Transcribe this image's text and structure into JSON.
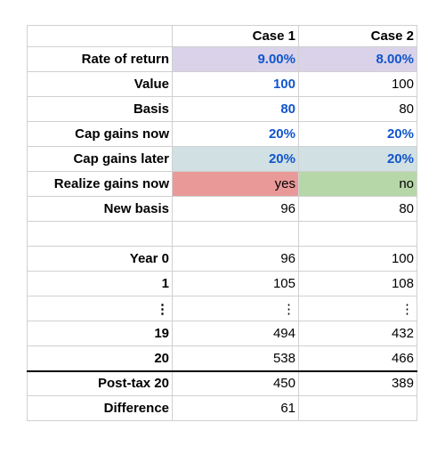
{
  "table": {
    "columns": [
      "Case 1",
      "Case 2"
    ],
    "rows": [
      {
        "label": "Rate of return",
        "values": [
          "9.00%",
          "8.00%"
        ],
        "fills": [
          "#d9d2e9",
          "#d9d2e9"
        ]
      },
      {
        "label": "Value",
        "values": [
          100,
          100
        ]
      },
      {
        "label": "Basis",
        "values": [
          80,
          80
        ]
      },
      {
        "label": "Cap gains now",
        "values": [
          "20%",
          "20%"
        ]
      },
      {
        "label": "Cap gains later",
        "values": [
          "20%",
          "20%"
        ],
        "fills": [
          "#d0e0e3",
          "#d0e0e3"
        ]
      },
      {
        "label": "Realize gains now",
        "values": [
          "yes",
          "no"
        ],
        "fills": [
          "#ea9999",
          "#b6d7a8"
        ]
      },
      {
        "label": "New basis",
        "values": [
          96,
          80
        ]
      },
      {
        "label": "Year 0",
        "values": [
          96,
          100
        ]
      },
      {
        "label": "1",
        "values": [
          105,
          108
        ]
      },
      {
        "label": "⋮",
        "values": [
          "⋮",
          "⋮"
        ]
      },
      {
        "label": "19",
        "values": [
          494,
          432
        ]
      },
      {
        "label": "20",
        "values": [
          538,
          466
        ]
      },
      {
        "label": "Post-tax 20",
        "values": [
          450,
          389
        ]
      },
      {
        "label": "Difference",
        "values": [
          61
        ]
      }
    ]
  }
}
